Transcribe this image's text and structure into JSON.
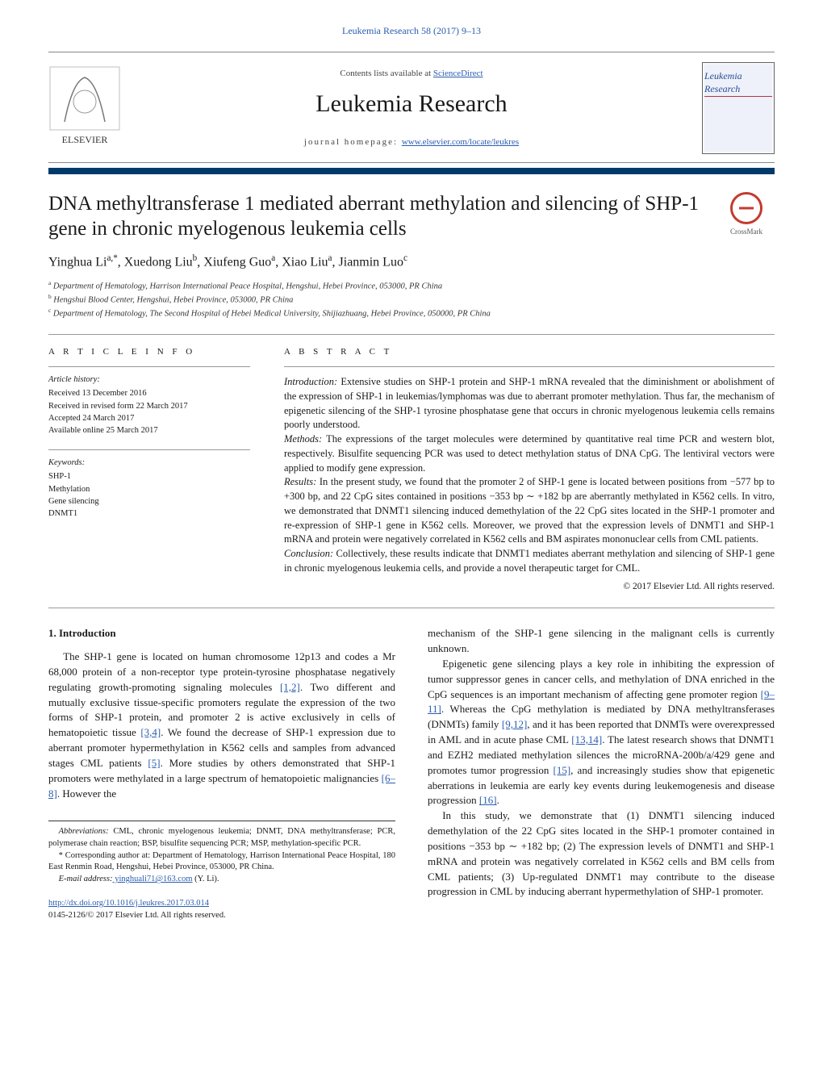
{
  "journal_ref": "Leukemia Research 58 (2017) 9–13",
  "masthead": {
    "contents_prefix": "Contents lists available at ",
    "contents_link": "ScienceDirect",
    "journal_title": "Leukemia Research",
    "homepage_prefix": "journal homepage: ",
    "homepage_link": "www.elsevier.com/locate/leukres",
    "publisher_logo_alt": "ELSEVIER",
    "cover_title": "Leukemia Research"
  },
  "crossmark_label": "CrossMark",
  "title": "DNA methyltransferase 1 mediated aberrant methylation and silencing of SHP-1 gene in chronic myelogenous leukemia cells",
  "authors_html": "Yinghua Li<sup>a,*</sup>, Xuedong Liu<sup>b</sup>, Xiufeng Guo<sup>a</sup>, Xiao Liu<sup>a</sup>, Jianmin Luo<sup>c</sup>",
  "affiliations": [
    "a Department of Hematology, Harrison International Peace Hospital, Hengshui, Hebei Province, 053000, PR China",
    "b Hengshui Blood Center, Hengshui, Hebei Province, 053000, PR China",
    "c Department of Hematology, The Second Hospital of Hebei Medical University, Shijiazhuang, Hebei Province, 050000, PR China"
  ],
  "article_info": {
    "header": "a r t i c l e   i n f o",
    "history_label": "Article history:",
    "history": [
      "Received 13 December 2016",
      "Received in revised form 22 March 2017",
      "Accepted 24 March 2017",
      "Available online 25 March 2017"
    ],
    "keywords_label": "Keywords:",
    "keywords": [
      "SHP-1",
      "Methylation",
      "Gene silencing",
      "DNMT1"
    ]
  },
  "abstract": {
    "header": "a b s t r a c t",
    "intro_label": "Introduction:",
    "intro": " Extensive studies on SHP-1 protein and SHP-1 mRNA revealed that the diminishment or abolishment of the expression of SHP-1 in leukemias/lymphomas was due to aberrant promoter methylation. Thus far, the mechanism of epigenetic silencing of the SHP-1 tyrosine phosphatase gene that occurs in chronic myelogenous leukemia cells remains poorly understood.",
    "methods_label": "Methods:",
    "methods": " The expressions of the target molecules were determined by quantitative real time PCR and western blot, respectively. Bisulfite sequencing PCR was used to detect methylation status of DNA CpG. The lentiviral vectors were applied to modify gene expression.",
    "results_label": "Results:",
    "results": " In the present study, we found that the promoter 2 of SHP-1 gene is located between positions from −577 bp to +300 bp, and 22 CpG sites contained in positions −353 bp ∼ +182 bp are aberrantly methylated in K562 cells. In vitro, we demonstrated that DNMT1 silencing induced demethylation of the 22 CpG sites located in the SHP-1 promoter and re-expression of SHP-1 gene in K562 cells. Moreover, we proved that the expression levels of DNMT1 and SHP-1 mRNA and protein were negatively correlated in K562 cells and BM aspirates mononuclear cells from CML patients.",
    "conclusion_label": "Conclusion:",
    "conclusion": " Collectively, these results indicate that DNMT1 mediates aberrant methylation and silencing of SHP-1 gene in chronic myelogenous leukemia cells, and provide a novel therapeutic target for CML.",
    "copyright": "© 2017 Elsevier Ltd. All rights reserved."
  },
  "section_heading": "1. Introduction",
  "body_left": {
    "p1_a": "The SHP-1 gene is located on human chromosome 12p13 and codes a Mr 68,000 protein of a non-receptor type protein-tyrosine phosphatase negatively regulating growth-promoting signaling molecules ",
    "r1": "[1,2]",
    "p1_b": ". Two different and mutually exclusive tissue-specific promoters regulate the expression of the two forms of SHP-1 protein, and promoter 2 is active exclusively in cells of hematopoietic tissue ",
    "r2": "[3,4]",
    "p1_c": ". We found the decrease of SHP-1 expression due to aberrant promoter hypermethylation in K562 cells and samples from advanced stages CML patients ",
    "r3": "[5]",
    "p1_d": ". More studies by others demonstrated that SHP-1 promoters were methylated in a large spectrum of hematopoietic malignancies ",
    "r4": "[6–8]",
    "p1_e": ". However the"
  },
  "body_right": {
    "p1": "mechanism of the SHP-1 gene silencing in the malignant cells is currently unknown.",
    "p2_a": "Epigenetic gene silencing plays a key role in inhibiting the expression of tumor suppressor genes in cancer cells, and methylation of DNA enriched in the CpG sequences is an important mechanism of affecting gene promoter region ",
    "r5": "[9–11]",
    "p2_b": ". Whereas the CpG methylation is mediated by DNA methyltransferases (DNMTs) family ",
    "r6": "[9,12]",
    "p2_c": ", and it has been reported that DNMTs were overexpressed in AML and in acute phase CML ",
    "r7": "[13,14]",
    "p2_d": ". The latest research shows that DNMT1 and EZH2 mediated methylation silences the microRNA-200b/a/429 gene and promotes tumor progression ",
    "r8": "[15]",
    "p2_e": ", and increasingly studies show that epigenetic aberrations in leukemia are early key events during leukemogenesis and disease progression ",
    "r9": "[16]",
    "p2_f": ".",
    "p3": "In this study, we demonstrate that (1) DNMT1 silencing induced demethylation of the 22 CpG sites located in the SHP-1 promoter contained in positions −353 bp ∼ +182 bp; (2) The expression levels of DNMT1 and SHP-1 mRNA and protein was negatively correlated in K562 cells and BM cells from CML patients; (3) Up-regulated DNMT1 may contribute to the disease progression in CML by inducing aberrant hypermethylation of SHP-1 promoter."
  },
  "footnotes": {
    "abbrev_label": "Abbreviations:",
    "abbrev": " CML, chronic myelogenous leukemia; DNMT, DNA methyltransferase; PCR, polymerase chain reaction; BSP, bisulfite sequencing PCR; MSP, methylation-specific PCR.",
    "corr_prefix": "* Corresponding author at: Department of Hematology, Harrison International Peace Hospital, 180 East Renmin Road, Hengshui, Hebei Province, 053000, PR China.",
    "email_label": "E-mail address:",
    "email": " yinghuali71@163.com",
    "email_suffix": " (Y. Li)."
  },
  "doi": {
    "url": "http://dx.doi.org/10.1016/j.leukres.2017.03.014",
    "line2": "0145-2126/© 2017 Elsevier Ltd. All rights reserved."
  },
  "colors": {
    "link": "#2a5db0",
    "bar": "#003a6b",
    "crossmark": "#c43a2f",
    "rule": "#999999",
    "text": "#1a1a1a"
  },
  "typography": {
    "body_pt": 13,
    "title_pt": 25,
    "journal_title_pt": 30,
    "small_pt": 11,
    "family": "Times New Roman / serif"
  }
}
